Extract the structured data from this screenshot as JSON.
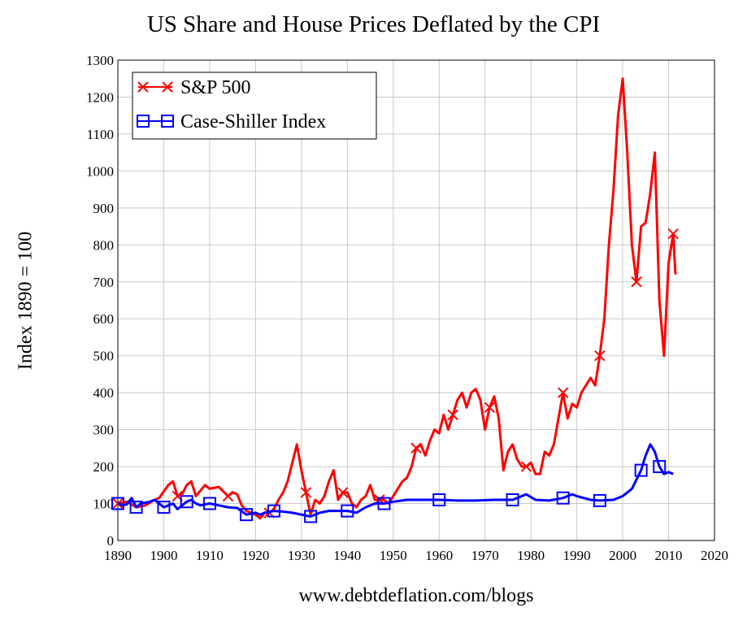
{
  "chart_data": {
    "type": "line",
    "title": "US Share and House Prices Deflated by the CPI",
    "xlabel": "",
    "ylabel": "Index 1890 = 100",
    "xlim": [
      1890,
      2020
    ],
    "ylim": [
      0,
      1300
    ],
    "xticks": [
      1890,
      1900,
      1910,
      1920,
      1930,
      1940,
      1950,
      1960,
      1970,
      1980,
      1990,
      2000,
      2010,
      2020
    ],
    "yticks": [
      0,
      100,
      200,
      300,
      400,
      500,
      600,
      700,
      800,
      900,
      1000,
      1100,
      1200,
      1300
    ],
    "grid": true,
    "legend_position": "top-left",
    "series": [
      {
        "name": "S&P 500",
        "color": "#ff0000",
        "marker": "x",
        "points": [
          [
            1890,
            100
          ],
          [
            1892,
            105
          ],
          [
            1894,
            90
          ],
          [
            1896,
            95
          ],
          [
            1898,
            110
          ],
          [
            1899,
            115
          ],
          [
            1901,
            150
          ],
          [
            1902,
            160
          ],
          [
            1903,
            120
          ],
          [
            1904,
            125
          ],
          [
            1905,
            150
          ],
          [
            1906,
            160
          ],
          [
            1907,
            120
          ],
          [
            1909,
            150
          ],
          [
            1910,
            140
          ],
          [
            1912,
            145
          ],
          [
            1914,
            120
          ],
          [
            1915,
            130
          ],
          [
            1916,
            125
          ],
          [
            1917,
            95
          ],
          [
            1918,
            80
          ],
          [
            1920,
            70
          ],
          [
            1921,
            60
          ],
          [
            1922,
            75
          ],
          [
            1923,
            75
          ],
          [
            1924,
            85
          ],
          [
            1925,
            110
          ],
          [
            1926,
            130
          ],
          [
            1927,
            160
          ],
          [
            1928,
            210
          ],
          [
            1929,
            260
          ],
          [
            1930,
            190
          ],
          [
            1931,
            130
          ],
          [
            1932,
            70
          ],
          [
            1933,
            110
          ],
          [
            1934,
            100
          ],
          [
            1935,
            120
          ],
          [
            1936,
            160
          ],
          [
            1937,
            190
          ],
          [
            1938,
            110
          ],
          [
            1939,
            130
          ],
          [
            1940,
            130
          ],
          [
            1941,
            100
          ],
          [
            1942,
            90
          ],
          [
            1943,
            110
          ],
          [
            1944,
            120
          ],
          [
            1945,
            150
          ],
          [
            1946,
            110
          ],
          [
            1947,
            110
          ],
          [
            1948,
            110
          ],
          [
            1949,
            100
          ],
          [
            1950,
            120
          ],
          [
            1951,
            140
          ],
          [
            1952,
            160
          ],
          [
            1953,
            170
          ],
          [
            1954,
            200
          ],
          [
            1955,
            250
          ],
          [
            1956,
            260
          ],
          [
            1957,
            230
          ],
          [
            1958,
            270
          ],
          [
            1959,
            300
          ],
          [
            1960,
            290
          ],
          [
            1961,
            340
          ],
          [
            1962,
            300
          ],
          [
            1963,
            340
          ],
          [
            1964,
            380
          ],
          [
            1965,
            400
          ],
          [
            1966,
            360
          ],
          [
            1967,
            400
          ],
          [
            1968,
            410
          ],
          [
            1969,
            380
          ],
          [
            1970,
            300
          ],
          [
            1971,
            360
          ],
          [
            1972,
            390
          ],
          [
            1973,
            330
          ],
          [
            1974,
            190
          ],
          [
            1975,
            240
          ],
          [
            1976,
            260
          ],
          [
            1977,
            220
          ],
          [
            1978,
            200
          ],
          [
            1979,
            200
          ],
          [
            1980,
            210
          ],
          [
            1981,
            180
          ],
          [
            1982,
            180
          ],
          [
            1983,
            240
          ],
          [
            1984,
            230
          ],
          [
            1985,
            260
          ],
          [
            1986,
            330
          ],
          [
            1987,
            400
          ],
          [
            1988,
            330
          ],
          [
            1989,
            370
          ],
          [
            1990,
            360
          ],
          [
            1991,
            400
          ],
          [
            1992,
            420
          ],
          [
            1993,
            440
          ],
          [
            1994,
            420
          ],
          [
            1995,
            500
          ],
          [
            1996,
            600
          ],
          [
            1997,
            800
          ],
          [
            1998,
            950
          ],
          [
            1999,
            1150
          ],
          [
            2000,
            1250
          ],
          [
            2001,
            1050
          ],
          [
            2002,
            800
          ],
          [
            2003,
            700
          ],
          [
            2004,
            850
          ],
          [
            2005,
            860
          ],
          [
            2006,
            940
          ],
          [
            2007,
            1050
          ],
          [
            2008,
            650
          ],
          [
            2009,
            500
          ],
          [
            2010,
            750
          ],
          [
            2011,
            830
          ],
          [
            2011.5,
            720
          ]
        ]
      },
      {
        "name": "Case-Shiller Index",
        "color": "#0000ff",
        "marker": "square",
        "points": [
          [
            1890,
            100
          ],
          [
            1891,
            95
          ],
          [
            1892,
            98
          ],
          [
            1893,
            115
          ],
          [
            1894,
            90
          ],
          [
            1895,
            100
          ],
          [
            1897,
            105
          ],
          [
            1898,
            110
          ],
          [
            1900,
            90
          ],
          [
            1902,
            100
          ],
          [
            1903,
            85
          ],
          [
            1904,
            95
          ],
          [
            1905,
            105
          ],
          [
            1906,
            110
          ],
          [
            1907,
            100
          ],
          [
            1908,
            95
          ],
          [
            1910,
            100
          ],
          [
            1912,
            95
          ],
          [
            1914,
            90
          ],
          [
            1916,
            88
          ],
          [
            1918,
            70
          ],
          [
            1920,
            75
          ],
          [
            1921,
            70
          ],
          [
            1922,
            75
          ],
          [
            1924,
            80
          ],
          [
            1926,
            78
          ],
          [
            1928,
            75
          ],
          [
            1930,
            70
          ],
          [
            1932,
            65
          ],
          [
            1934,
            75
          ],
          [
            1936,
            80
          ],
          [
            1938,
            80
          ],
          [
            1940,
            80
          ],
          [
            1942,
            75
          ],
          [
            1944,
            90
          ],
          [
            1946,
            100
          ],
          [
            1948,
            100
          ],
          [
            1950,
            105
          ],
          [
            1953,
            110
          ],
          [
            1956,
            110
          ],
          [
            1960,
            110
          ],
          [
            1964,
            108
          ],
          [
            1968,
            108
          ],
          [
            1972,
            110
          ],
          [
            1976,
            110
          ],
          [
            1979,
            125
          ],
          [
            1981,
            110
          ],
          [
            1984,
            108
          ],
          [
            1987,
            115
          ],
          [
            1989,
            125
          ],
          [
            1990,
            120
          ],
          [
            1993,
            110
          ],
          [
            1995,
            108
          ],
          [
            1998,
            110
          ],
          [
            2000,
            120
          ],
          [
            2002,
            140
          ],
          [
            2004,
            190
          ],
          [
            2005,
            230
          ],
          [
            2006,
            260
          ],
          [
            2007,
            240
          ],
          [
            2008,
            200
          ],
          [
            2009,
            180
          ],
          [
            2010,
            185
          ],
          [
            2011,
            180
          ]
        ]
      }
    ]
  },
  "footer": "www.debtdeflation.com/blogs"
}
